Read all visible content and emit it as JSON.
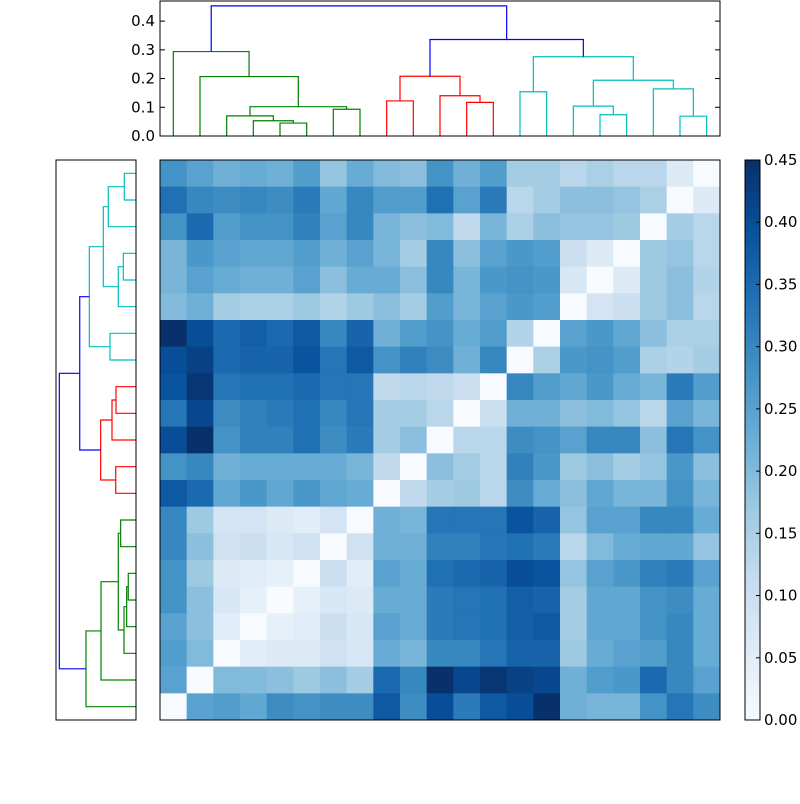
{
  "chart_data": {
    "type": "heatmap",
    "title": "",
    "n": 21,
    "colormap": "Blues",
    "colormap_stops": [
      "#f7fbff",
      "#deebf7",
      "#c6dbef",
      "#9ecae1",
      "#6baed6",
      "#4292c6",
      "#2171b5",
      "#08519c",
      "#08306b"
    ],
    "value_range": [
      0,
      0.45
    ],
    "colorbar": {
      "ticks": [
        0,
        0.05,
        0.1,
        0.15,
        0.2,
        0.25,
        0.3,
        0.35,
        0.4,
        0.45
      ],
      "tick_labels": [
        "0.00",
        "0.05",
        "0.10",
        "0.15",
        "0.20",
        "0.25",
        "0.30",
        "0.35",
        "0.40",
        "0.45"
      ]
    },
    "matrix": [
      [
        0.28,
        0.25,
        0.22,
        0.23,
        0.22,
        0.26,
        0.18,
        0.23,
        0.2,
        0.19,
        0.28,
        0.22,
        0.26,
        0.16,
        0.16,
        0.13,
        0.15,
        0.13,
        0.13,
        0.06,
        0.0
      ],
      [
        0.34,
        0.3,
        0.29,
        0.3,
        0.29,
        0.32,
        0.24,
        0.3,
        0.26,
        0.26,
        0.34,
        0.25,
        0.32,
        0.13,
        0.16,
        0.19,
        0.19,
        0.18,
        0.15,
        0.0,
        0.06
      ],
      [
        0.28,
        0.35,
        0.26,
        0.28,
        0.28,
        0.31,
        0.25,
        0.3,
        0.21,
        0.19,
        0.2,
        0.12,
        0.21,
        0.15,
        0.19,
        0.18,
        0.18,
        0.17,
        0.0,
        0.16,
        0.13
      ],
      [
        0.21,
        0.27,
        0.25,
        0.24,
        0.24,
        0.26,
        0.22,
        0.25,
        0.21,
        0.16,
        0.3,
        0.19,
        0.25,
        0.27,
        0.26,
        0.1,
        0.06,
        0.0,
        0.17,
        0.18,
        0.13
      ],
      [
        0.21,
        0.25,
        0.23,
        0.22,
        0.22,
        0.25,
        0.19,
        0.23,
        0.23,
        0.19,
        0.3,
        0.21,
        0.27,
        0.28,
        0.27,
        0.07,
        0.0,
        0.06,
        0.17,
        0.19,
        0.14
      ],
      [
        0.2,
        0.22,
        0.16,
        0.15,
        0.15,
        0.17,
        0.14,
        0.17,
        0.19,
        0.16,
        0.26,
        0.21,
        0.25,
        0.27,
        0.26,
        0.0,
        0.08,
        0.1,
        0.17,
        0.19,
        0.13
      ],
      [
        0.45,
        0.4,
        0.35,
        0.37,
        0.35,
        0.38,
        0.3,
        0.36,
        0.22,
        0.26,
        0.28,
        0.23,
        0.26,
        0.14,
        0.0,
        0.25,
        0.27,
        0.24,
        0.19,
        0.15,
        0.15
      ],
      [
        0.4,
        0.42,
        0.35,
        0.36,
        0.36,
        0.39,
        0.33,
        0.38,
        0.28,
        0.31,
        0.29,
        0.22,
        0.3,
        0.0,
        0.15,
        0.27,
        0.28,
        0.26,
        0.15,
        0.14,
        0.16
      ],
      [
        0.39,
        0.44,
        0.33,
        0.34,
        0.34,
        0.35,
        0.33,
        0.33,
        0.12,
        0.13,
        0.12,
        0.1,
        0.0,
        0.3,
        0.26,
        0.24,
        0.27,
        0.23,
        0.21,
        0.32,
        0.26
      ],
      [
        0.33,
        0.41,
        0.29,
        0.31,
        0.32,
        0.34,
        0.3,
        0.33,
        0.16,
        0.16,
        0.13,
        0.0,
        0.1,
        0.22,
        0.22,
        0.19,
        0.2,
        0.18,
        0.13,
        0.25,
        0.21
      ],
      [
        0.4,
        0.45,
        0.28,
        0.31,
        0.31,
        0.34,
        0.29,
        0.32,
        0.16,
        0.19,
        0.0,
        0.13,
        0.13,
        0.29,
        0.28,
        0.25,
        0.3,
        0.3,
        0.19,
        0.33,
        0.28
      ],
      [
        0.28,
        0.3,
        0.22,
        0.23,
        0.23,
        0.23,
        0.23,
        0.21,
        0.12,
        0.0,
        0.19,
        0.16,
        0.13,
        0.31,
        0.27,
        0.17,
        0.19,
        0.16,
        0.18,
        0.27,
        0.19
      ],
      [
        0.38,
        0.35,
        0.24,
        0.27,
        0.24,
        0.27,
        0.24,
        0.23,
        0.0,
        0.12,
        0.16,
        0.17,
        0.13,
        0.29,
        0.23,
        0.19,
        0.24,
        0.21,
        0.21,
        0.28,
        0.21
      ],
      [
        0.3,
        0.17,
        0.08,
        0.08,
        0.06,
        0.05,
        0.08,
        0.0,
        0.22,
        0.21,
        0.33,
        0.33,
        0.33,
        0.39,
        0.36,
        0.18,
        0.25,
        0.25,
        0.3,
        0.3,
        0.23
      ],
      [
        0.3,
        0.19,
        0.09,
        0.1,
        0.07,
        0.09,
        0.0,
        0.09,
        0.22,
        0.22,
        0.31,
        0.31,
        0.33,
        0.34,
        0.32,
        0.13,
        0.2,
        0.23,
        0.24,
        0.24,
        0.18
      ],
      [
        0.28,
        0.17,
        0.06,
        0.05,
        0.04,
        0.0,
        0.1,
        0.05,
        0.25,
        0.23,
        0.34,
        0.35,
        0.36,
        0.4,
        0.39,
        0.18,
        0.25,
        0.27,
        0.31,
        0.32,
        0.25
      ],
      [
        0.28,
        0.19,
        0.07,
        0.04,
        0.0,
        0.04,
        0.07,
        0.06,
        0.23,
        0.23,
        0.32,
        0.33,
        0.34,
        0.37,
        0.36,
        0.16,
        0.24,
        0.24,
        0.28,
        0.29,
        0.23
      ],
      [
        0.25,
        0.19,
        0.05,
        0.0,
        0.04,
        0.05,
        0.1,
        0.07,
        0.25,
        0.23,
        0.32,
        0.33,
        0.34,
        0.37,
        0.38,
        0.16,
        0.24,
        0.24,
        0.28,
        0.3,
        0.23
      ],
      [
        0.26,
        0.2,
        0.0,
        0.05,
        0.06,
        0.06,
        0.09,
        0.07,
        0.23,
        0.21,
        0.3,
        0.3,
        0.33,
        0.36,
        0.36,
        0.17,
        0.23,
        0.25,
        0.26,
        0.3,
        0.23
      ],
      [
        0.25,
        0.0,
        0.2,
        0.2,
        0.19,
        0.17,
        0.19,
        0.16,
        0.35,
        0.3,
        0.45,
        0.41,
        0.44,
        0.42,
        0.41,
        0.22,
        0.26,
        0.27,
        0.35,
        0.3,
        0.25
      ],
      [
        0.0,
        0.25,
        0.26,
        0.24,
        0.29,
        0.28,
        0.29,
        0.29,
        0.38,
        0.29,
        0.4,
        0.32,
        0.38,
        0.4,
        0.45,
        0.22,
        0.21,
        0.21,
        0.28,
        0.33,
        0.29
      ]
    ],
    "column_dendrogram": {
      "ylim": [
        0,
        0.47
      ],
      "ticks": [
        0,
        0.1,
        0.2,
        0.3,
        0.4
      ],
      "tick_labels": [
        "0.0",
        "0.1",
        "0.2",
        "0.3",
        "0.4"
      ],
      "colors": {
        "g": "#008000",
        "r": "#ff0000",
        "c": "#00bfbf",
        "b": "#0000ff"
      },
      "links": [
        [
          4,
          5,
          0,
          0,
          0.045,
          "g"
        ],
        [
          3,
          4.5,
          0,
          0.045,
          0.053,
          "g"
        ],
        [
          2,
          3.75,
          0,
          0.053,
          0.07,
          "g"
        ],
        [
          6,
          7,
          0,
          0,
          0.093,
          "g"
        ],
        [
          2.875,
          6.5,
          0.07,
          0.093,
          0.102,
          "g"
        ],
        [
          1,
          4.6875,
          0,
          0.102,
          0.207,
          "g"
        ],
        [
          0,
          2.84,
          0,
          0.207,
          0.294,
          "g"
        ],
        [
          8,
          9,
          0,
          0,
          0.122,
          "r"
        ],
        [
          11,
          12,
          0,
          0,
          0.117,
          "r"
        ],
        [
          10,
          11.5,
          0,
          0.117,
          0.14,
          "r"
        ],
        [
          8.5,
          10.75,
          0.122,
          0.14,
          0.208,
          "r"
        ],
        [
          13,
          14,
          0,
          0,
          0.154,
          "c"
        ],
        [
          16,
          17,
          0,
          0,
          0.074,
          "c"
        ],
        [
          15,
          16.5,
          0,
          0.074,
          0.104,
          "c"
        ],
        [
          19,
          20,
          0,
          0,
          0.069,
          "c"
        ],
        [
          18,
          19.5,
          0,
          0.069,
          0.164,
          "c"
        ],
        [
          15.75,
          18.75,
          0.104,
          0.164,
          0.194,
          "c"
        ],
        [
          13.5,
          17.25,
          0.154,
          0.194,
          0.276,
          "c"
        ],
        [
          9.625,
          15.375,
          0.208,
          0.276,
          0.336,
          "b"
        ],
        [
          1.42,
          12.5,
          0.294,
          0.336,
          0.453,
          "b"
        ]
      ]
    },
    "row_dendrogram": {
      "xlim": [
        0,
        0.6
      ],
      "links": [
        [
          0,
          1,
          0,
          0,
          0.088,
          "c"
        ],
        [
          0.5,
          2,
          0.088,
          0,
          0.208,
          "c"
        ],
        [
          3,
          4,
          0,
          0,
          0.095,
          "c"
        ],
        [
          3.5,
          5,
          0.095,
          0,
          0.133,
          "c"
        ],
        [
          1.25,
          4.25,
          0.208,
          0.133,
          0.245,
          "c"
        ],
        [
          6,
          7,
          0,
          0,
          0.195,
          "c"
        ],
        [
          2.75,
          6.5,
          0.245,
          0.195,
          0.35,
          "c"
        ],
        [
          8,
          9,
          0,
          0,
          0.15,
          "r"
        ],
        [
          8.5,
          10,
          0.15,
          0,
          0.18,
          "r"
        ],
        [
          11,
          12,
          0,
          0,
          0.152,
          "r"
        ],
        [
          9.25,
          11.5,
          0.18,
          0.152,
          0.265,
          "r"
        ],
        [
          4.625,
          10.375,
          0.35,
          0.265,
          0.422,
          "b"
        ],
        [
          13,
          14,
          0,
          0,
          0.115,
          "g"
        ],
        [
          15,
          16,
          0,
          0,
          0.058,
          "g"
        ],
        [
          15.5,
          17,
          0.058,
          0,
          0.07,
          "g"
        ],
        [
          16.25,
          18,
          0.07,
          0,
          0.09,
          "g"
        ],
        [
          13.5,
          17.125,
          0.115,
          0.09,
          0.133,
          "g"
        ],
        [
          15.3125,
          19,
          0.133,
          0,
          0.2625,
          "g"
        ],
        [
          17.16,
          20,
          0.2625,
          0,
          0.375,
          "g"
        ],
        [
          7.5,
          18.58,
          0.422,
          0.375,
          0.575,
          "b"
        ]
      ]
    }
  }
}
